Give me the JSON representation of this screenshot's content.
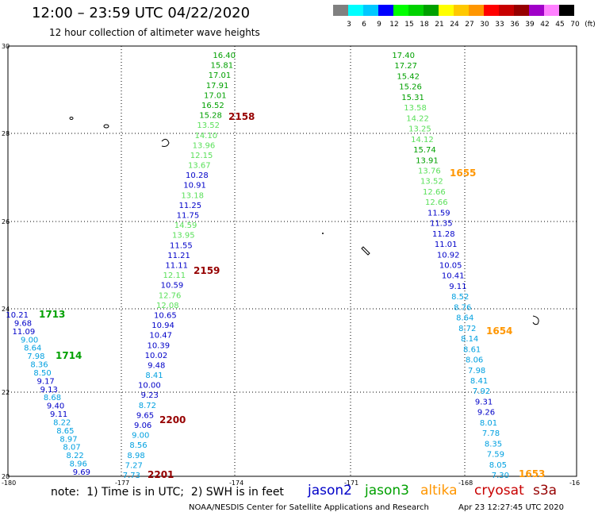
{
  "header": {
    "title": "12:00 – 23:59 UTC 04/22/2020",
    "subtitle": "12 hour collection of altimeter wave heights"
  },
  "scale": {
    "colors": [
      "#808080",
      "#00ffff",
      "#00c8ff",
      "#0000ff",
      "#00ff00",
      "#00d200",
      "#00a000",
      "#ffff00",
      "#ffc800",
      "#ff9600",
      "#ff0000",
      "#c80000",
      "#960000",
      "#a000c8",
      "#ff80ff",
      "#000000"
    ],
    "labels": [
      "3",
      "6",
      "9",
      "12",
      "15",
      "18",
      "21",
      "24",
      "27",
      "30",
      "33",
      "36",
      "39",
      "42",
      "45",
      "70",
      "(ft)"
    ]
  },
  "axes": {
    "lat_labels": [
      "30",
      "28",
      "26",
      "24",
      "22",
      "20"
    ],
    "lon_labels": [
      "-180",
      "-177",
      "-174",
      "-171",
      "-168",
      "-16"
    ]
  },
  "tracks": [
    {
      "values": [
        "16.40",
        "15.81",
        "17.01",
        "17.91",
        "17.01",
        "16.52",
        "15.28",
        "13.52",
        "14.10",
        "13.96",
        "12.15",
        "13.67",
        "10.28",
        "10.91",
        "13.18",
        "11.25",
        "11.75",
        "14.59",
        "13.95",
        "11.55",
        "11.21",
        "11.11",
        "12.11",
        "10.59",
        "12.76",
        "12.08",
        "10.65",
        "10.94",
        "10.47",
        "10.39",
        "10.02",
        "9.48",
        "8.41",
        "10.00",
        "9.23",
        "8.72",
        "9.65",
        "9.06",
        "9.00",
        "8.56",
        "8.98",
        "7.27",
        "7.73"
      ],
      "colors": [
        "#00a000",
        "#00a000",
        "#00a000",
        "#00a000",
        "#00a000",
        "#00a000",
        "#00a000",
        "#5ae05a",
        "#5ae05a",
        "#5ae05a",
        "#5ae05a",
        "#5ae05a",
        "#0000c8",
        "#0000c8",
        "#5ae05a",
        "#0000c8",
        "#0000c8",
        "#5ae05a",
        "#5ae05a",
        "#0000c8",
        "#0000c8",
        "#0000c8",
        "#5ae05a",
        "#0000c8",
        "#5ae05a",
        "#5ae05a",
        "#0000c8",
        "#0000c8",
        "#0000c8",
        "#0000c8",
        "#0000c8",
        "#0000c8",
        "#00a0e0",
        "#0000c8",
        "#0000c8",
        "#00a0e0",
        "#0000c8",
        "#0000c8",
        "#00a0e0",
        "#00a0e0",
        "#00a0e0",
        "#00a0e0",
        "#00a0e0"
      ]
    },
    {
      "values": [
        "17.40",
        "17.27",
        "15.42",
        "15.26",
        "15.31",
        "13.58",
        "14.22",
        "13.25",
        "14.12",
        "15.74",
        "13.91",
        "13.76",
        "13.52",
        "12.66",
        "12.66",
        "11.59",
        "11.35",
        "11.28",
        "11.01",
        "10.92",
        "10.05",
        "10.41",
        "9.11",
        "8.52",
        "8.76",
        "8.64",
        "8.72",
        "8.14",
        "8.61",
        "8.06",
        "7.98",
        "8.41",
        "7.92",
        "9.31",
        "9.26",
        "8.01",
        "7.78",
        "8.35",
        "7.59",
        "8.05",
        "7.30"
      ],
      "colors": [
        "#00a000",
        "#00a000",
        "#00a000",
        "#00a000",
        "#00a000",
        "#5ae05a",
        "#5ae05a",
        "#5ae05a",
        "#5ae05a",
        "#00a000",
        "#00a000",
        "#5ae05a",
        "#5ae05a",
        "#5ae05a",
        "#5ae05a",
        "#0000c8",
        "#0000c8",
        "#0000c8",
        "#0000c8",
        "#0000c8",
        "#0000c8",
        "#0000c8",
        "#0000c8",
        "#00a0e0",
        "#00a0e0",
        "#00a0e0",
        "#00a0e0",
        "#00a0e0",
        "#00a0e0",
        "#00a0e0",
        "#00a0e0",
        "#00a0e0",
        "#00a0e0",
        "#0000c8",
        "#0000c8",
        "#00a0e0",
        "#00a0e0",
        "#00a0e0",
        "#00a0e0",
        "#00a0e0",
        "#00a0e0"
      ]
    },
    {
      "values": [
        "10.21",
        "9.68",
        "11.09",
        "9.00",
        "8.64",
        "7.98",
        "8.36",
        "8.50",
        "9.17",
        "9.13",
        "8.68",
        "9.40",
        "9.11",
        "8.22",
        "8.65",
        "8.97",
        "8.07",
        "8.22",
        "8.96",
        "9.69"
      ],
      "colors": [
        "#0000c8",
        "#0000c8",
        "#0000c8",
        "#00a0e0",
        "#00a0e0",
        "#00a0e0",
        "#00a0e0",
        "#00a0e0",
        "#0000c8",
        "#0000c8",
        "#00a0e0",
        "#0000c8",
        "#0000c8",
        "#00a0e0",
        "#00a0e0",
        "#00a0e0",
        "#00a0e0",
        "#00a0e0",
        "#00a0e0",
        "#0000c8"
      ]
    }
  ],
  "time_tags": [
    {
      "text": "2158",
      "color": "#960000"
    },
    {
      "text": "2159",
      "color": "#960000"
    },
    {
      "text": "2200",
      "color": "#960000"
    },
    {
      "text": "2201",
      "color": "#960000"
    },
    {
      "text": "1655",
      "color": "#ff9600"
    },
    {
      "text": "1654",
      "color": "#ff9600"
    },
    {
      "text": "1653",
      "color": "#ff9600"
    },
    {
      "text": "1713",
      "color": "#00a000"
    },
    {
      "text": "1714",
      "color": "#00a000"
    }
  ],
  "footer": {
    "note": "note:  1) Time is in UTC;  2) SWH is in feet",
    "legend": [
      {
        "name": "jason2",
        "color": "#0000c8"
      },
      {
        "name": "jason3",
        "color": "#00a000"
      },
      {
        "name": "altika",
        "color": "#ff9600"
      },
      {
        "name": "cryosat",
        "color": "#c80000"
      },
      {
        "name": "s3a",
        "color": "#960000"
      }
    ],
    "credit": "NOAA/NESDIS Center for Satellite Applications and Research",
    "timestamp": "Apr 23 12:27:45 UTC 2020"
  }
}
